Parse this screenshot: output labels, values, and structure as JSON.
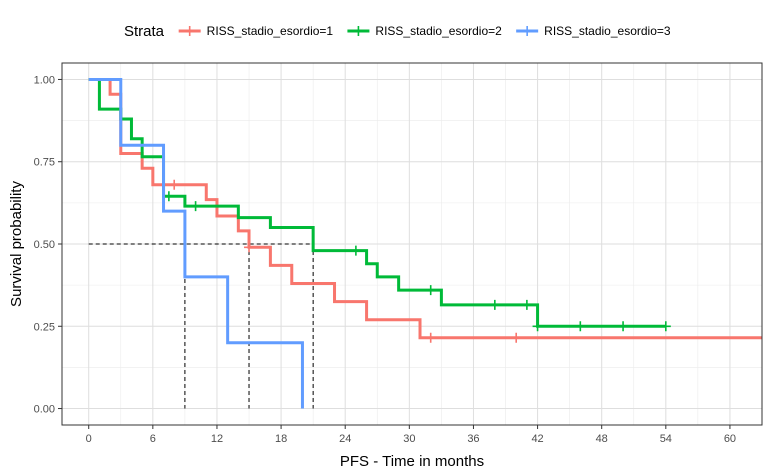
{
  "chart_data": {
    "type": "line",
    "subtype": "kaplan-meier survival curve",
    "xlabel": "PFS - Time in months",
    "ylabel": "Survival probability",
    "xlim": [
      -2.5,
      63
    ],
    "ylim": [
      -0.05,
      1.05
    ],
    "x_ticks": [
      0,
      6,
      12,
      18,
      24,
      30,
      36,
      42,
      48,
      54,
      60
    ],
    "y_ticks": [
      0,
      0.25,
      0.5,
      0.75,
      1.0
    ],
    "y_tick_labels": [
      "0.00",
      "0.25",
      "0.50",
      "0.75",
      "1.00"
    ],
    "grid": true,
    "legend": {
      "title": "Strata",
      "position": "top"
    },
    "series": [
      {
        "name": "RISS_stadio_esordio=1",
        "color": "#F8766D",
        "steps": [
          [
            0,
            1.0
          ],
          [
            2,
            0.955
          ],
          [
            3,
            0.87
          ],
          [
            3,
            0.775
          ],
          [
            5,
            0.73
          ],
          [
            6,
            0.68
          ],
          [
            11,
            0.635
          ],
          [
            12,
            0.585
          ],
          [
            14,
            0.54
          ],
          [
            15,
            0.49
          ],
          [
            17,
            0.435
          ],
          [
            19,
            0.38
          ],
          [
            23,
            0.325
          ],
          [
            26,
            0.27
          ],
          [
            31,
            0.215
          ],
          [
            63,
            0.215
          ]
        ],
        "censored": [
          [
            8,
            0.68
          ],
          [
            15,
            0.49
          ],
          [
            32,
            0.215
          ],
          [
            40,
            0.215
          ]
        ]
      },
      {
        "name": "RISS_stadio_esordio=2",
        "color": "#00BA38",
        "steps": [
          [
            0,
            1.0
          ],
          [
            1,
            0.91
          ],
          [
            3,
            0.88
          ],
          [
            4,
            0.82
          ],
          [
            5,
            0.765
          ],
          [
            7,
            0.645
          ],
          [
            9,
            0.615
          ],
          [
            14,
            0.58
          ],
          [
            17,
            0.55
          ],
          [
            21,
            0.48
          ],
          [
            26,
            0.44
          ],
          [
            27,
            0.4
          ],
          [
            29,
            0.36
          ],
          [
            33,
            0.315
          ],
          [
            42,
            0.25
          ],
          [
            54,
            0.25
          ]
        ],
        "censored": [
          [
            7.5,
            0.645
          ],
          [
            10,
            0.615
          ],
          [
            25,
            0.48
          ],
          [
            32,
            0.36
          ],
          [
            38,
            0.315
          ],
          [
            41,
            0.315
          ],
          [
            42,
            0.25
          ],
          [
            46,
            0.25
          ],
          [
            50,
            0.25
          ],
          [
            54,
            0.25
          ]
        ]
      },
      {
        "name": "RISS_stadio_esordio=3",
        "color": "#619CFF",
        "steps": [
          [
            0,
            1.0
          ],
          [
            3,
            0.8
          ],
          [
            7,
            0.6
          ],
          [
            9,
            0.4
          ],
          [
            13,
            0.2
          ],
          [
            20,
            0.0
          ],
          [
            20,
            0.0
          ]
        ],
        "censored": []
      }
    ],
    "median_lines": {
      "y": 0.5,
      "medians": [
        9,
        15,
        21
      ]
    }
  }
}
